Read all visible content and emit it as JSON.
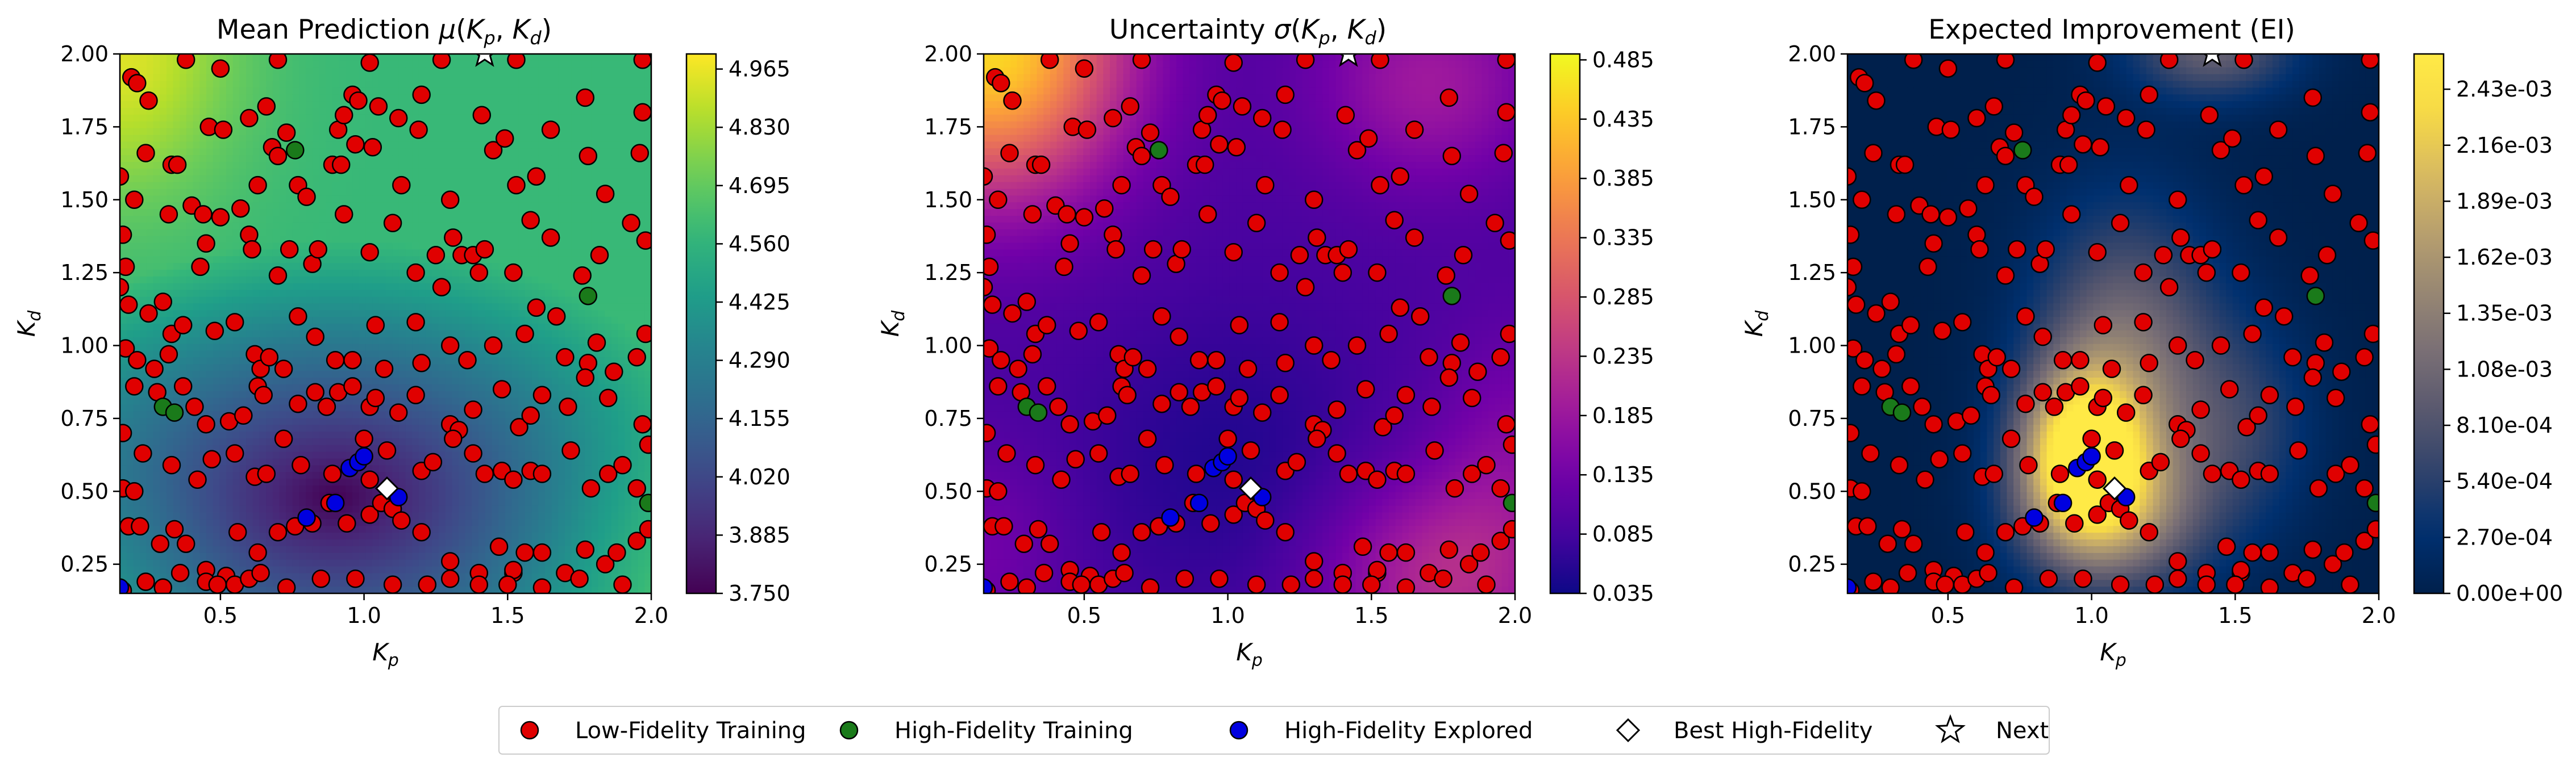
{
  "chart_data": [
    {
      "type": "heatmap",
      "title": "Mean Prediction μ(Kp,Kd)",
      "title_parts": {
        "lead": "Mean Prediction ",
        "func": "μ",
        "args": [
          "K",
          "p",
          "K",
          "d"
        ]
      },
      "xlabel": "Kp",
      "ylabel": "Kd",
      "xlim": [
        0.15,
        2.0
      ],
      "ylim": [
        0.15,
        2.0
      ],
      "xticks": [
        "0.5",
        "1.0",
        "1.5",
        "2.0"
      ],
      "yticks": [
        "0.25",
        "0.50",
        "0.75",
        "1.00",
        "1.25",
        "1.50",
        "1.75",
        "2.00"
      ],
      "colormap": "viridis",
      "colorbar_ticks": [
        "3.750",
        "3.885",
        "4.020",
        "4.155",
        "4.290",
        "4.425",
        "4.560",
        "4.695",
        "4.830",
        "4.965"
      ],
      "colorbar_range": [
        3.75,
        5.0
      ]
    },
    {
      "type": "heatmap",
      "title": "Uncertainty σ(Kp,Kd)",
      "title_parts": {
        "lead": "Uncertainty ",
        "func": "σ",
        "args": [
          "K",
          "p",
          "K",
          "d"
        ]
      },
      "xlabel": "Kp",
      "ylabel": "Kd",
      "xlim": [
        0.15,
        2.0
      ],
      "ylim": [
        0.15,
        2.0
      ],
      "xticks": [
        "0.5",
        "1.0",
        "1.5",
        "2.0"
      ],
      "yticks": [
        "0.25",
        "0.50",
        "0.75",
        "1.00",
        "1.25",
        "1.50",
        "1.75",
        "2.00"
      ],
      "colormap": "plasma",
      "colorbar_ticks": [
        "0.035",
        "0.085",
        "0.135",
        "0.185",
        "0.235",
        "0.285",
        "0.335",
        "0.385",
        "0.435",
        "0.485"
      ],
      "colorbar_range": [
        0.035,
        0.49
      ]
    },
    {
      "type": "heatmap",
      "title": "Expected Improvement (EI)",
      "xlabel": "Kp",
      "ylabel": "Kd",
      "xlim": [
        0.15,
        2.0
      ],
      "ylim": [
        0.15,
        2.0
      ],
      "xticks": [
        "0.5",
        "1.0",
        "1.5",
        "2.0"
      ],
      "yticks": [
        "0.25",
        "0.50",
        "0.75",
        "1.00",
        "1.25",
        "1.50",
        "1.75",
        "2.00"
      ],
      "colormap": "cividis",
      "colorbar_ticks": [
        "0.00e+00",
        "2.70e-04",
        "5.40e-04",
        "8.10e-04",
        "1.08e-03",
        "1.35e-03",
        "1.62e-03",
        "1.89e-03",
        "2.16e-03",
        "2.43e-03"
      ],
      "colorbar_range": [
        0.0,
        0.0026
      ]
    }
  ],
  "points": {
    "low_fidelity": [
      [
        0.19,
        1.92
      ],
      [
        0.21,
        1.9
      ],
      [
        0.25,
        1.84
      ],
      [
        0.38,
        1.98
      ],
      [
        0.5,
        1.95
      ],
      [
        0.7,
        1.98
      ],
      [
        1.02,
        1.97
      ],
      [
        1.27,
        1.98
      ],
      [
        1.53,
        1.98
      ],
      [
        1.97,
        1.98
      ],
      [
        0.15,
        1.58
      ],
      [
        0.24,
        1.66
      ],
      [
        0.33,
        1.62
      ],
      [
        0.35,
        1.62
      ],
      [
        0.46,
        1.75
      ],
      [
        0.51,
        1.74
      ],
      [
        0.6,
        1.78
      ],
      [
        0.66,
        1.82
      ],
      [
        0.73,
        1.73
      ],
      [
        0.91,
        1.74
      ],
      [
        0.93,
        1.79
      ],
      [
        0.96,
        1.86
      ],
      [
        0.98,
        1.84
      ],
      [
        1.05,
        1.82
      ],
      [
        1.12,
        1.78
      ],
      [
        1.2,
        1.86
      ],
      [
        1.41,
        1.79
      ],
      [
        1.65,
        1.74
      ],
      [
        1.77,
        1.85
      ],
      [
        1.97,
        1.8
      ],
      [
        0.16,
        1.38
      ],
      [
        0.17,
        1.27
      ],
      [
        0.2,
        1.5
      ],
      [
        0.32,
        1.45
      ],
      [
        0.4,
        1.48
      ],
      [
        0.44,
        1.45
      ],
      [
        0.5,
        1.44
      ],
      [
        0.57,
        1.47
      ],
      [
        0.63,
        1.55
      ],
      [
        0.68,
        1.68
      ],
      [
        0.7,
        1.65
      ],
      [
        0.77,
        1.55
      ],
      [
        0.8,
        1.51
      ],
      [
        0.89,
        1.62
      ],
      [
        0.92,
        1.62
      ],
      [
        0.97,
        1.69
      ],
      [
        1.03,
        1.68
      ],
      [
        1.13,
        1.55
      ],
      [
        1.19,
        1.74
      ],
      [
        1.3,
        1.5
      ],
      [
        1.45,
        1.67
      ],
      [
        1.49,
        1.71
      ],
      [
        1.53,
        1.55
      ],
      [
        1.6,
        1.58
      ],
      [
        1.78,
        1.65
      ],
      [
        1.84,
        1.52
      ],
      [
        1.96,
        1.66
      ],
      [
        0.15,
        1.2
      ],
      [
        0.18,
        1.14
      ],
      [
        0.25,
        1.11
      ],
      [
        0.3,
        1.15
      ],
      [
        0.43,
        1.27
      ],
      [
        0.45,
        1.35
      ],
      [
        0.6,
        1.38
      ],
      [
        0.61,
        1.33
      ],
      [
        0.7,
        1.24
      ],
      [
        0.74,
        1.33
      ],
      [
        0.82,
        1.28
      ],
      [
        0.84,
        1.33
      ],
      [
        0.93,
        1.45
      ],
      [
        1.02,
        1.32
      ],
      [
        1.1,
        1.42
      ],
      [
        1.18,
        1.25
      ],
      [
        1.25,
        1.31
      ],
      [
        1.27,
        1.2
      ],
      [
        1.31,
        1.37
      ],
      [
        1.34,
        1.31
      ],
      [
        1.38,
        1.31
      ],
      [
        1.4,
        1.25
      ],
      [
        1.42,
        1.33
      ],
      [
        1.52,
        1.25
      ],
      [
        1.58,
        1.43
      ],
      [
        1.65,
        1.37
      ],
      [
        1.76,
        1.24
      ],
      [
        1.82,
        1.31
      ],
      [
        1.93,
        1.42
      ],
      [
        1.98,
        1.36
      ],
      [
        0.17,
        0.99
      ],
      [
        0.21,
        0.95
      ],
      [
        0.27,
        0.92
      ],
      [
        0.32,
        0.97
      ],
      [
        0.33,
        1.04
      ],
      [
        0.37,
        1.07
      ],
      [
        0.48,
        1.05
      ],
      [
        0.55,
        1.08
      ],
      [
        0.62,
        0.97
      ],
      [
        0.64,
        0.92
      ],
      [
        0.67,
        0.96
      ],
      [
        0.72,
        0.92
      ],
      [
        0.77,
        1.1
      ],
      [
        0.83,
        1.03
      ],
      [
        0.9,
        0.95
      ],
      [
        0.96,
        0.95
      ],
      [
        1.04,
        1.07
      ],
      [
        1.07,
        0.92
      ],
      [
        1.18,
        1.08
      ],
      [
        1.2,
        0.94
      ],
      [
        1.3,
        1.0
      ],
      [
        1.36,
        0.95
      ],
      [
        1.45,
        1.0
      ],
      [
        1.56,
        1.04
      ],
      [
        1.6,
        1.13
      ],
      [
        1.67,
        1.1
      ],
      [
        1.7,
        0.96
      ],
      [
        1.78,
        0.94
      ],
      [
        1.81,
        1.01
      ],
      [
        1.87,
        0.91
      ],
      [
        1.95,
        0.96
      ],
      [
        1.98,
        1.04
      ],
      [
        0.16,
        0.7
      ],
      [
        0.2,
        0.86
      ],
      [
        0.28,
        0.84
      ],
      [
        0.37,
        0.86
      ],
      [
        0.41,
        0.79
      ],
      [
        0.45,
        0.73
      ],
      [
        0.53,
        0.74
      ],
      [
        0.58,
        0.76
      ],
      [
        0.63,
        0.86
      ],
      [
        0.65,
        0.83
      ],
      [
        0.77,
        0.8
      ],
      [
        0.83,
        0.84
      ],
      [
        0.87,
        0.79
      ],
      [
        0.91,
        0.84
      ],
      [
        0.96,
        0.86
      ],
      [
        1.02,
        0.79
      ],
      [
        1.04,
        0.82
      ],
      [
        1.12,
        0.77
      ],
      [
        1.18,
        0.83
      ],
      [
        1.3,
        0.73
      ],
      [
        1.33,
        0.71
      ],
      [
        1.38,
        0.78
      ],
      [
        1.48,
        0.85
      ],
      [
        1.54,
        0.72
      ],
      [
        1.58,
        0.76
      ],
      [
        1.62,
        0.83
      ],
      [
        1.71,
        0.79
      ],
      [
        1.77,
        0.89
      ],
      [
        1.85,
        0.82
      ],
      [
        1.97,
        0.73
      ],
      [
        0.16,
        0.51
      ],
      [
        0.2,
        0.5
      ],
      [
        0.23,
        0.63
      ],
      [
        0.33,
        0.59
      ],
      [
        0.42,
        0.54
      ],
      [
        0.47,
        0.61
      ],
      [
        0.55,
        0.63
      ],
      [
        0.62,
        0.55
      ],
      [
        0.66,
        0.56
      ],
      [
        0.72,
        0.68
      ],
      [
        0.78,
        0.59
      ],
      [
        0.89,
        0.56
      ],
      [
        1.0,
        0.68
      ],
      [
        1.02,
        0.54
      ],
      [
        1.08,
        0.64
      ],
      [
        1.2,
        0.57
      ],
      [
        1.24,
        0.6
      ],
      [
        1.31,
        0.68
      ],
      [
        1.38,
        0.63
      ],
      [
        1.42,
        0.56
      ],
      [
        1.48,
        0.57
      ],
      [
        1.52,
        0.54
      ],
      [
        1.58,
        0.57
      ],
      [
        1.62,
        0.56
      ],
      [
        1.72,
        0.64
      ],
      [
        1.79,
        0.51
      ],
      [
        1.85,
        0.56
      ],
      [
        1.9,
        0.59
      ],
      [
        1.95,
        0.51
      ],
      [
        1.99,
        0.66
      ],
      [
        0.18,
        0.38
      ],
      [
        0.22,
        0.38
      ],
      [
        0.29,
        0.32
      ],
      [
        0.34,
        0.37
      ],
      [
        0.38,
        0.32
      ],
      [
        0.45,
        0.23
      ],
      [
        0.52,
        0.21
      ],
      [
        0.56,
        0.36
      ],
      [
        0.63,
        0.29
      ],
      [
        0.7,
        0.36
      ],
      [
        0.76,
        0.38
      ],
      [
        0.82,
        0.39
      ],
      [
        0.88,
        0.46
      ],
      [
        0.94,
        0.39
      ],
      [
        1.02,
        0.42
      ],
      [
        1.06,
        0.46
      ],
      [
        1.1,
        0.44
      ],
      [
        1.13,
        0.4
      ],
      [
        1.2,
        0.36
      ],
      [
        1.3,
        0.26
      ],
      [
        1.4,
        0.22
      ],
      [
        1.47,
        0.31
      ],
      [
        1.52,
        0.22
      ],
      [
        1.52,
        0.23
      ],
      [
        1.56,
        0.29
      ],
      [
        1.62,
        0.29
      ],
      [
        1.7,
        0.22
      ],
      [
        1.77,
        0.3
      ],
      [
        1.84,
        0.25
      ],
      [
        1.88,
        0.29
      ],
      [
        1.95,
        0.33
      ],
      [
        1.99,
        0.37
      ],
      [
        0.16,
        0.16
      ],
      [
        0.24,
        0.19
      ],
      [
        0.3,
        0.17
      ],
      [
        0.36,
        0.22
      ],
      [
        0.45,
        0.19
      ],
      [
        0.49,
        0.18
      ],
      [
        0.55,
        0.18
      ],
      [
        0.6,
        0.2
      ],
      [
        0.64,
        0.22
      ],
      [
        0.73,
        0.17
      ],
      [
        0.85,
        0.2
      ],
      [
        0.97,
        0.2
      ],
      [
        1.1,
        0.18
      ],
      [
        1.22,
        0.18
      ],
      [
        1.3,
        0.2
      ],
      [
        1.4,
        0.18
      ],
      [
        1.5,
        0.18
      ],
      [
        1.62,
        0.17
      ],
      [
        1.75,
        0.2
      ],
      [
        1.9,
        0.18
      ]
    ],
    "high_fidelity": [
      [
        0.3,
        0.79
      ],
      [
        0.34,
        0.77
      ],
      [
        0.76,
        1.67
      ],
      [
        1.78,
        1.17
      ],
      [
        1.99,
        0.46
      ]
    ],
    "high_fidelity_explored": [
      [
        0.9,
        0.46
      ],
      [
        0.95,
        0.58
      ],
      [
        0.98,
        0.6
      ],
      [
        1.0,
        0.62
      ],
      [
        1.12,
        0.48
      ],
      [
        0.8,
        0.41
      ],
      [
        0.15,
        0.17
      ]
    ],
    "best_high_fidelity": [
      1.08,
      0.51
    ],
    "next": [
      1.42,
      2.0
    ]
  },
  "legend": {
    "placement": "bottom-center",
    "items": [
      {
        "label": "Low-Fidelity Training",
        "marker": "circle",
        "color": "#e00000"
      },
      {
        "label": "High-Fidelity Training",
        "marker": "circle",
        "color": "#1a7a1a"
      },
      {
        "label": "High-Fidelity Explored",
        "marker": "circle",
        "color": "#0000e0"
      },
      {
        "label": "Best High-Fidelity",
        "marker": "diamond",
        "color": "#ffffff"
      },
      {
        "label": "Next",
        "marker": "star",
        "color": "#ffffff"
      }
    ]
  },
  "colors": {
    "low_fidelity": "#e00000",
    "high_fidelity": "#1a7a1a",
    "explored": "#0000e0",
    "edge": "#000000"
  }
}
